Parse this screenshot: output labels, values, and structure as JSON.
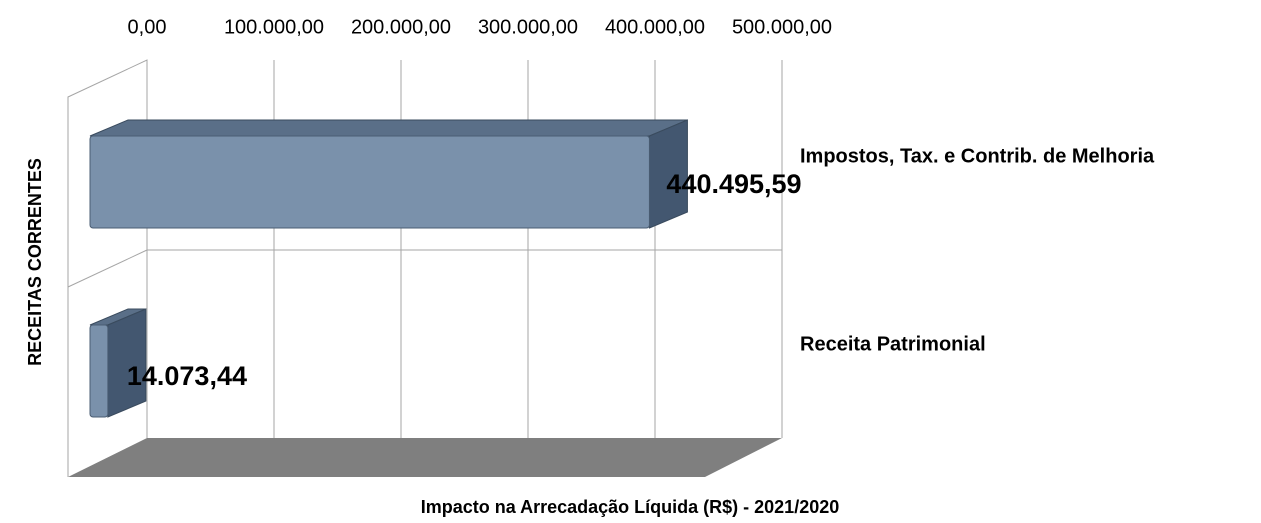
{
  "chart_data": {
    "type": "bar",
    "orientation": "horizontal",
    "categories": [
      "Impostos, Tax. e Contrib. de Melhoria",
      "Receita Patrimonial"
    ],
    "values": [
      440495.59,
      14073.44
    ],
    "value_labels": [
      "440.495,59",
      "14.073,44"
    ],
    "color": "#7a91ab",
    "xlim": [
      0,
      500000
    ],
    "xticks": [
      {
        "value": 0,
        "label": "0,00"
      },
      {
        "value": 100000,
        "label": "100.000,00"
      },
      {
        "value": 200000,
        "label": "200.000,00"
      },
      {
        "value": 300000,
        "label": "300.000,00"
      },
      {
        "value": 400000,
        "label": "400.000,00"
      },
      {
        "value": 500000,
        "label": "500.000,00"
      }
    ],
    "xlabel": "Impacto na Arrecadação Líquida (R$) - 2021/2020",
    "ylabel": "RECEITAS CORRENTES",
    "grid": true
  }
}
